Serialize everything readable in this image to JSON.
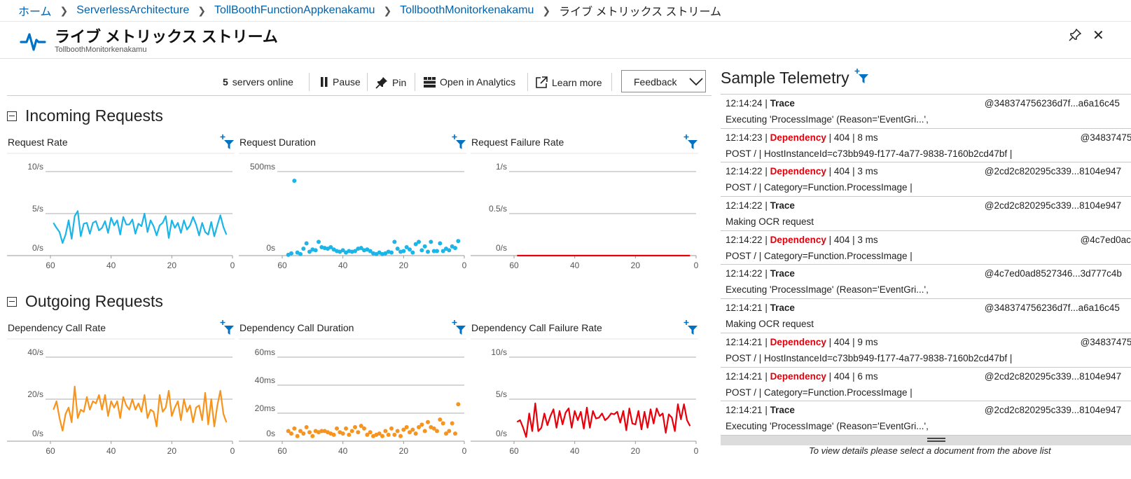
{
  "breadcrumb": [
    "ホーム",
    "ServerlessArchitecture",
    "TollBoothFunctionAppkenakamu",
    "TollboothMonitorkenakamu"
  ],
  "breadcrumb_current": "ライブ メトリックス ストリーム",
  "header": {
    "title": "ライブ メトリックス ストリーム",
    "subtitle": "TollboothMonitorkenakamu"
  },
  "toolbar": {
    "servers_count": "5",
    "servers_label": "servers online",
    "pause": "Pause",
    "pin": "Pin",
    "open_analytics": "Open in Analytics",
    "learn_more": "Learn more",
    "feedback": "Feedback"
  },
  "sections": {
    "incoming": "Incoming Requests",
    "outgoing": "Outgoing Requests"
  },
  "colors": {
    "incoming": "#1cb5e8",
    "outgoing": "#f7941d",
    "failure": "#e8000b",
    "link": "#0062ad",
    "filter": "#0072c6"
  },
  "chart_data": [
    {
      "id": "request-rate",
      "type": "line",
      "title": "Request Rate",
      "y_ticks": [
        "10/s",
        "5/s",
        "0/s"
      ],
      "ylim": [
        0,
        10
      ],
      "x_ticks": [
        "60",
        "40",
        "20",
        "0"
      ],
      "xlim": [
        60,
        0
      ],
      "color": "#1cb5e8",
      "x": [
        59,
        58,
        57,
        56,
        55,
        54,
        53,
        52,
        51,
        50,
        49,
        48,
        47,
        46,
        45,
        44,
        43,
        42,
        41,
        40,
        39,
        38,
        37,
        36,
        35,
        34,
        33,
        32,
        31,
        30,
        29,
        28,
        27,
        26,
        25,
        24,
        23,
        22,
        21,
        20,
        19,
        18,
        17,
        16,
        15,
        14,
        13,
        12,
        11,
        10,
        9,
        8,
        7,
        6,
        5,
        4,
        3,
        2
      ],
      "values": [
        3.9,
        3.3,
        2.8,
        1.5,
        2.5,
        4.2,
        2.0,
        4.7,
        5.3,
        2.3,
        3.8,
        3.9,
        2.6,
        3.9,
        4.1,
        3.0,
        3.3,
        4.1,
        2.7,
        4.5,
        3.6,
        4.2,
        2.5,
        4.6,
        3.7,
        3.7,
        4.3,
        2.6,
        3.8,
        3.5,
        5.0,
        2.8,
        4.2,
        3.5,
        2.4,
        3.6,
        3.9,
        4.7,
        2.1,
        4.2,
        3.3,
        3.9,
        2.7,
        4.2,
        3.1,
        3.6,
        4.6,
        3.7,
        2.4,
        3.9,
        2.8,
        2.5,
        4.0,
        2.3,
        3.6,
        4.8,
        3.4,
        2.5
      ]
    },
    {
      "id": "request-duration",
      "type": "scatter",
      "title": "Request Duration",
      "y_ticks": [
        "500ms",
        "0s"
      ],
      "ylim": [
        0,
        550
      ],
      "x_ticks": [
        "60",
        "40",
        "20",
        "0"
      ],
      "xlim": [
        60,
        0
      ],
      "color": "#1cb5e8",
      "x": [
        58,
        57,
        56,
        55,
        54,
        53,
        52,
        51,
        50,
        49,
        48,
        47,
        46,
        45,
        44,
        43,
        42,
        41,
        40,
        39,
        38,
        37,
        36,
        35,
        34,
        33,
        32,
        31,
        30,
        29,
        28,
        27,
        26,
        25,
        24,
        23,
        22,
        21,
        20,
        19,
        18,
        17,
        16,
        15,
        14,
        13,
        12,
        11,
        10,
        9,
        8,
        7,
        6,
        5,
        4,
        3,
        2
      ],
      "values": [
        5,
        15,
        490,
        20,
        10,
        45,
        80,
        25,
        40,
        35,
        90,
        55,
        50,
        45,
        55,
        40,
        30,
        25,
        35,
        20,
        30,
        25,
        30,
        45,
        50,
        35,
        40,
        30,
        15,
        10,
        20,
        10,
        15,
        25,
        20,
        90,
        45,
        25,
        30,
        55,
        40,
        20,
        75,
        90,
        35,
        60,
        25,
        90,
        30,
        30,
        80,
        30,
        45,
        35,
        60,
        50,
        95
      ]
    },
    {
      "id": "request-failure-rate",
      "type": "line",
      "title": "Request Failure Rate",
      "y_ticks": [
        "1/s",
        "0.5/s",
        "0/s"
      ],
      "ylim": [
        0,
        1
      ],
      "x_ticks": [
        "60",
        "40",
        "20",
        "0"
      ],
      "xlim": [
        60,
        0
      ],
      "color": "#e8000b",
      "x": [
        59,
        2
      ],
      "values": [
        0,
        0
      ]
    },
    {
      "id": "dependency-call-rate",
      "type": "line",
      "title": "Dependency Call Rate",
      "y_ticks": [
        "40/s",
        "20/s",
        "0/s"
      ],
      "ylim": [
        0,
        40
      ],
      "x_ticks": [
        "60",
        "40",
        "20",
        "0"
      ],
      "xlim": [
        60,
        0
      ],
      "color": "#f7941d",
      "x": [
        59,
        58,
        57,
        56,
        55,
        54,
        53,
        52,
        51,
        50,
        49,
        48,
        47,
        46,
        45,
        44,
        43,
        42,
        41,
        40,
        39,
        38,
        37,
        36,
        35,
        34,
        33,
        32,
        31,
        30,
        29,
        28,
        27,
        26,
        25,
        24,
        23,
        22,
        21,
        20,
        19,
        18,
        17,
        16,
        15,
        14,
        13,
        12,
        11,
        10,
        9,
        8,
        7,
        6,
        5,
        4,
        3,
        2
      ],
      "values": [
        15,
        19,
        11,
        5,
        13,
        16,
        9,
        26,
        11,
        15,
        14,
        21,
        15,
        19,
        18,
        22,
        15,
        22,
        12,
        19,
        16,
        19,
        11,
        21,
        17,
        15,
        20,
        15,
        18,
        14,
        22,
        11,
        15,
        14,
        7,
        22,
        14,
        16,
        24,
        12,
        16,
        19,
        10,
        20,
        14,
        17,
        9,
        16,
        17,
        10,
        23,
        8,
        20,
        7,
        17,
        24,
        13,
        9
      ]
    },
    {
      "id": "dependency-call-duration",
      "type": "scatter",
      "title": "Dependency Call Duration",
      "y_ticks": [
        "60ms",
        "40ms",
        "20ms",
        "0s"
      ],
      "ylim": [
        0,
        66
      ],
      "x_ticks": [
        "60",
        "40",
        "20",
        "0"
      ],
      "xlim": [
        60,
        0
      ],
      "color": "#f7941d",
      "x": [
        58,
        57,
        56,
        55,
        54,
        53,
        52,
        51,
        50,
        49,
        48,
        47,
        46,
        45,
        44,
        43,
        42,
        41,
        40,
        39,
        38,
        37,
        36,
        35,
        34,
        33,
        32,
        31,
        30,
        29,
        28,
        27,
        26,
        25,
        24,
        23,
        22,
        21,
        20,
        19,
        18,
        17,
        16,
        15,
        14,
        13,
        12,
        11,
        10,
        9,
        8,
        7,
        6,
        5,
        4,
        3,
        2
      ],
      "values": [
        8,
        6,
        10,
        4,
        8,
        6,
        11,
        7,
        4,
        8,
        7,
        8,
        8,
        7,
        6,
        5,
        10,
        7,
        6,
        10,
        5,
        8,
        11,
        7,
        12,
        10,
        5,
        7,
        4,
        5,
        6,
        4,
        8,
        5,
        10,
        5,
        8,
        4,
        9,
        11,
        7,
        9,
        6,
        11,
        13,
        8,
        15,
        11,
        10,
        8,
        17,
        14,
        6,
        8,
        14,
        6,
        29
      ]
    },
    {
      "id": "dependency-call-failure-rate",
      "type": "line",
      "title": "Dependency Call Failure Rate",
      "y_ticks": [
        "10/s",
        "5/s",
        "0/s"
      ],
      "ylim": [
        0,
        10
      ],
      "x_ticks": [
        "60",
        "40",
        "20",
        "0"
      ],
      "xlim": [
        60,
        0
      ],
      "color": "#e8000b",
      "x": [
        59,
        58,
        57,
        56,
        55,
        54,
        53,
        52,
        51,
        50,
        49,
        48,
        47,
        46,
        45,
        44,
        43,
        42,
        41,
        40,
        39,
        38,
        37,
        36,
        35,
        34,
        33,
        32,
        31,
        30,
        29,
        28,
        27,
        26,
        25,
        24,
        23,
        22,
        21,
        20,
        19,
        18,
        17,
        16,
        15,
        14,
        13,
        12,
        11,
        10,
        9,
        8,
        7,
        6,
        5,
        4,
        3,
        2
      ],
      "values": [
        2.3,
        2.5,
        1.6,
        0.5,
        3.3,
        1.2,
        4.5,
        1.2,
        1.6,
        3.3,
        1.9,
        3.0,
        3.8,
        1.6,
        3.6,
        2.0,
        3.4,
        3.9,
        1.6,
        3.6,
        2.5,
        3.5,
        1.5,
        4.0,
        1.6,
        3.6,
        2.7,
        2.8,
        3.3,
        2.5,
        2.8,
        3.3,
        3.2,
        3.5,
        2.2,
        3.6,
        1.3,
        3.9,
        2.1,
        2.0,
        3.6,
        1.4,
        3.5,
        1.6,
        3.8,
        2.1,
        3.9,
        3.0,
        3.3,
        1.0,
        3.2,
        2.8,
        1.2,
        4.4,
        2.6,
        4.4,
        2.5,
        1.8
      ]
    }
  ],
  "telemetry": {
    "title": "Sample Telemetry",
    "rows": [
      {
        "time": "12:14:24",
        "type": "Trace",
        "dep": false,
        "meta": "",
        "id": "@348374756236d7f...a6a16c45",
        "detail": "Executing 'ProcessImage' (Reason='EventGri...',"
      },
      {
        "time": "12:14:23",
        "type": "Dependency",
        "dep": true,
        "meta": " | 404 | 8 ms",
        "id": "@34837475",
        "detail": "POST / | HostInstanceId=c73bb949-f177-4a77-9838-7160b2cd47bf |"
      },
      {
        "time": "12:14:22",
        "type": "Dependency",
        "dep": true,
        "meta": " | 404 | 3 ms",
        "id": "@2cd2c820295c339...8104e947",
        "detail": "POST / | Category=Function.ProcessImage |"
      },
      {
        "time": "12:14:22",
        "type": "Trace",
        "dep": false,
        "meta": "",
        "id": "@2cd2c820295c339...8104e947",
        "detail": "Making OCR request"
      },
      {
        "time": "12:14:22",
        "type": "Dependency",
        "dep": true,
        "meta": " | 404 | 3 ms",
        "id": "@4c7ed0ac",
        "detail": "POST / | Category=Function.ProcessImage |"
      },
      {
        "time": "12:14:22",
        "type": "Trace",
        "dep": false,
        "meta": "",
        "id": "@4c7ed0ad8527346...3d777c4b",
        "detail": "Executing 'ProcessImage' (Reason='EventGri...',"
      },
      {
        "time": "12:14:21",
        "type": "Trace",
        "dep": false,
        "meta": "",
        "id": "@348374756236d7f...a6a16c45",
        "detail": "Making OCR request"
      },
      {
        "time": "12:14:21",
        "type": "Dependency",
        "dep": true,
        "meta": " | 404 | 9 ms",
        "id": "@34837475",
        "detail": "POST / | HostInstanceId=c73bb949-f177-4a77-9838-7160b2cd47bf |"
      },
      {
        "time": "12:14:21",
        "type": "Dependency",
        "dep": true,
        "meta": " | 404 | 6 ms",
        "id": "@2cd2c820295c339...8104e947",
        "detail": "POST / | Category=Function.ProcessImage |"
      },
      {
        "time": "12:14:21",
        "type": "Trace",
        "dep": false,
        "meta": "",
        "id": "@2cd2c820295c339...8104e947",
        "detail": "Executing 'ProcessImage' (Reason='EventGri...',"
      }
    ],
    "footer_note": "To view details please select a document from the above list"
  }
}
